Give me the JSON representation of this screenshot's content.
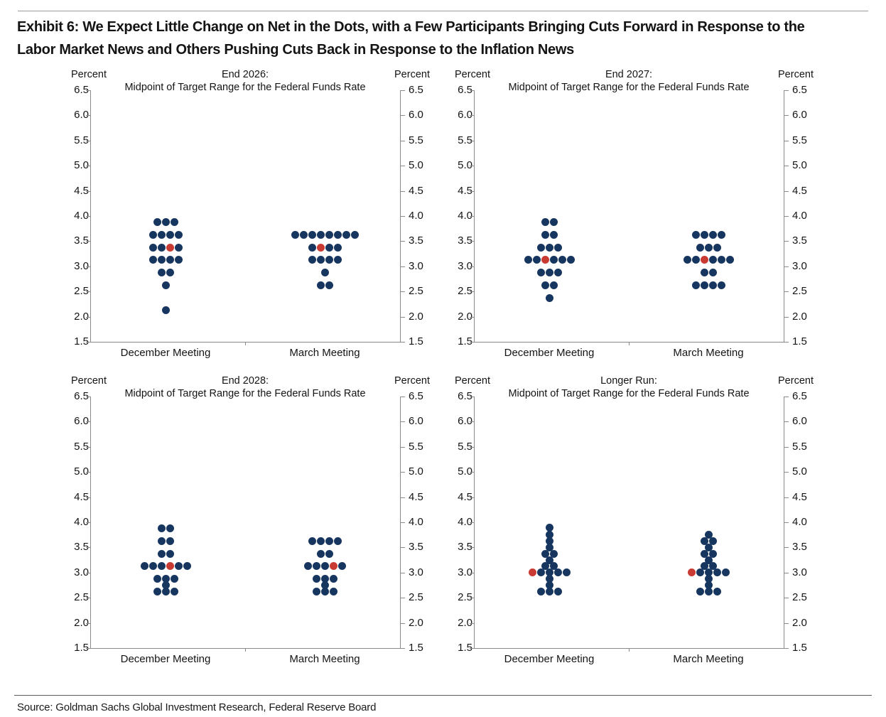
{
  "page": {
    "title_line1": "Exhibit 6: We Expect Little Change on Net in the Dots, with a Few Participants Bringing Cuts Forward in Response to the",
    "title_line2": "Labor Market News and Others Pushing Cuts Back in Response to the Inflation News",
    "source": "Source: Goldman Sachs Global Investment Research, Federal Reserve Board"
  },
  "colors": {
    "dot_navy": "#17365f",
    "dot_red": "#c93a32",
    "axis_gray": "#8a8a8a"
  },
  "chart_data": [
    {
      "type": "dot-plot",
      "title": "End 2026:",
      "subtitle": "Midpoint of Target Range for the Federal Funds Rate",
      "ylabel": "Percent",
      "ylim": [
        1.5,
        6.5
      ],
      "yticks": [
        6.5,
        6.0,
        5.5,
        5.0,
        4.5,
        4.0,
        3.5,
        3.0,
        2.5,
        2.0,
        1.5
      ],
      "grid": false,
      "legend": "none",
      "dot_color": "#17365f",
      "median_color": "#c93a32",
      "categories": [
        "December Meeting",
        "March Meeting"
      ],
      "series": [
        {
          "name": "December Meeting",
          "dots": [
            {
              "rate": 3.875,
              "count": 3
            },
            {
              "rate": 3.625,
              "count": 4
            },
            {
              "rate": 3.375,
              "count": 4,
              "median_index": 3
            },
            {
              "rate": 3.125,
              "count": 4
            },
            {
              "rate": 2.875,
              "count": 2
            },
            {
              "rate": 2.625,
              "count": 1
            },
            {
              "rate": 2.125,
              "count": 1
            }
          ]
        },
        {
          "name": "March Meeting",
          "dots": [
            {
              "rate": 3.625,
              "count": 8
            },
            {
              "rate": 3.375,
              "count": 4,
              "median_index": 2
            },
            {
              "rate": 3.125,
              "count": 4
            },
            {
              "rate": 2.875,
              "count": 1
            },
            {
              "rate": 2.625,
              "count": 2
            }
          ]
        }
      ]
    },
    {
      "type": "dot-plot",
      "title": "End 2027:",
      "subtitle": "Midpoint of Target Range for the Federal Funds Rate",
      "ylabel": "Percent",
      "ylim": [
        1.5,
        6.5
      ],
      "yticks": [
        6.5,
        6.0,
        5.5,
        5.0,
        4.5,
        4.0,
        3.5,
        3.0,
        2.5,
        2.0,
        1.5
      ],
      "grid": false,
      "legend": "none",
      "dot_color": "#17365f",
      "median_color": "#c93a32",
      "categories": [
        "December Meeting",
        "March Meeting"
      ],
      "series": [
        {
          "name": "December Meeting",
          "dots": [
            {
              "rate": 3.875,
              "count": 2
            },
            {
              "rate": 3.625,
              "count": 2
            },
            {
              "rate": 3.375,
              "count": 3
            },
            {
              "rate": 3.125,
              "count": 6,
              "median_index": 3
            },
            {
              "rate": 2.875,
              "count": 3
            },
            {
              "rate": 2.625,
              "count": 2
            },
            {
              "rate": 2.375,
              "count": 1
            }
          ]
        },
        {
          "name": "March Meeting",
          "dots": [
            {
              "rate": 3.625,
              "count": 4
            },
            {
              "rate": 3.375,
              "count": 3
            },
            {
              "rate": 3.125,
              "count": 6,
              "median_index": 3
            },
            {
              "rate": 2.875,
              "count": 2
            },
            {
              "rate": 2.625,
              "count": 4
            }
          ]
        }
      ]
    },
    {
      "type": "dot-plot",
      "title": "End 2028:",
      "subtitle": "Midpoint of Target Range for the Federal Funds Rate",
      "ylabel": "Percent",
      "ylim": [
        1.5,
        6.5
      ],
      "yticks": [
        6.5,
        6.0,
        5.5,
        5.0,
        4.5,
        4.0,
        3.5,
        3.0,
        2.5,
        2.0,
        1.5
      ],
      "grid": false,
      "legend": "none",
      "dot_color": "#17365f",
      "median_color": "#c93a32",
      "categories": [
        "December Meeting",
        "March Meeting"
      ],
      "series": [
        {
          "name": "December Meeting",
          "dots": [
            {
              "rate": 3.875,
              "count": 2
            },
            {
              "rate": 3.625,
              "count": 2
            },
            {
              "rate": 3.375,
              "count": 2
            },
            {
              "rate": 3.125,
              "count": 6,
              "median_index": 4
            },
            {
              "rate": 2.875,
              "count": 3
            },
            {
              "rate": 2.75,
              "count": 1
            },
            {
              "rate": 2.625,
              "count": 3
            }
          ]
        },
        {
          "name": "March Meeting",
          "dots": [
            {
              "rate": 3.625,
              "count": 4
            },
            {
              "rate": 3.375,
              "count": 2
            },
            {
              "rate": 3.125,
              "count": 5,
              "median_index": 4
            },
            {
              "rate": 2.875,
              "count": 3
            },
            {
              "rate": 2.75,
              "count": 1
            },
            {
              "rate": 2.625,
              "count": 3
            }
          ]
        }
      ]
    },
    {
      "type": "dot-plot",
      "title": "Longer Run:",
      "subtitle": "Midpoint of Target Range for the Federal Funds Rate",
      "ylabel": "Percent",
      "ylim": [
        1.5,
        6.5
      ],
      "yticks": [
        6.5,
        6.0,
        5.5,
        5.0,
        4.5,
        4.0,
        3.5,
        3.0,
        2.5,
        2.0,
        1.5
      ],
      "grid": false,
      "legend": "none",
      "dot_color": "#17365f",
      "median_color": "#c93a32",
      "categories": [
        "December Meeting",
        "March Meeting"
      ],
      "series": [
        {
          "name": "December Meeting",
          "dots": [
            {
              "rate": 3.9,
              "count": 1
            },
            {
              "rate": 3.75,
              "count": 1
            },
            {
              "rate": 3.625,
              "count": 1
            },
            {
              "rate": 3.5,
              "count": 1
            },
            {
              "rate": 3.375,
              "count": 2
            },
            {
              "rate": 3.25,
              "count": 1
            },
            {
              "rate": 3.125,
              "count": 2
            },
            {
              "rate": 3.0,
              "count": 5,
              "median_index": 1
            },
            {
              "rate": 2.875,
              "count": 1
            },
            {
              "rate": 2.75,
              "count": 1
            },
            {
              "rate": 2.625,
              "count": 3
            }
          ]
        },
        {
          "name": "March Meeting",
          "dots": [
            {
              "rate": 3.75,
              "count": 1
            },
            {
              "rate": 3.625,
              "count": 2
            },
            {
              "rate": 3.5,
              "count": 1
            },
            {
              "rate": 3.375,
              "count": 2
            },
            {
              "rate": 3.25,
              "count": 1
            },
            {
              "rate": 3.125,
              "count": 2
            },
            {
              "rate": 3.0,
              "count": 5,
              "median_index": 1
            },
            {
              "rate": 2.875,
              "count": 1
            },
            {
              "rate": 2.75,
              "count": 1
            },
            {
              "rate": 2.625,
              "count": 3
            }
          ]
        }
      ]
    }
  ]
}
